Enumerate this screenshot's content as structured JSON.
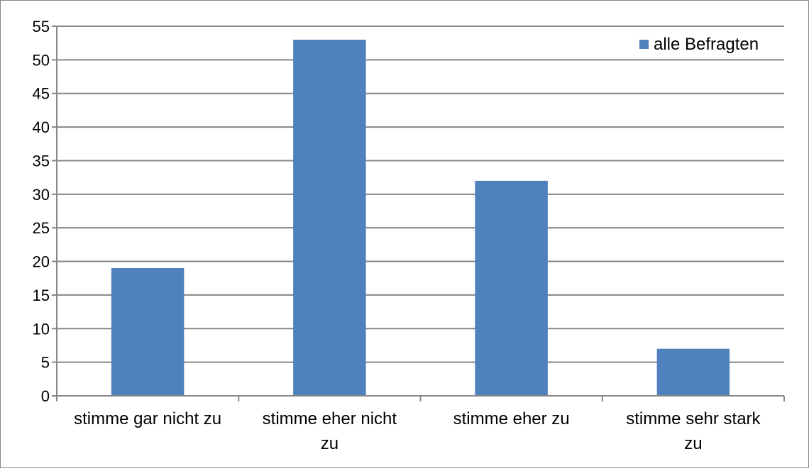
{
  "chart_data": {
    "type": "bar",
    "title": "",
    "xlabel": "",
    "ylabel": "",
    "categories": [
      [
        "stimme gar nicht zu"
      ],
      [
        "stimme eher nicht",
        "zu"
      ],
      [
        "stimme eher zu"
      ],
      [
        "stimme sehr stark",
        "zu"
      ]
    ],
    "series": [
      {
        "name": "alle Befragten",
        "values": [
          19,
          53,
          32,
          7
        ],
        "color": "#4F81BD"
      }
    ],
    "ylim": [
      0,
      55
    ],
    "yticks": [
      0,
      5,
      10,
      15,
      20,
      25,
      30,
      35,
      40,
      45,
      50,
      55
    ],
    "grid": true,
    "legend_position": "top-right"
  }
}
